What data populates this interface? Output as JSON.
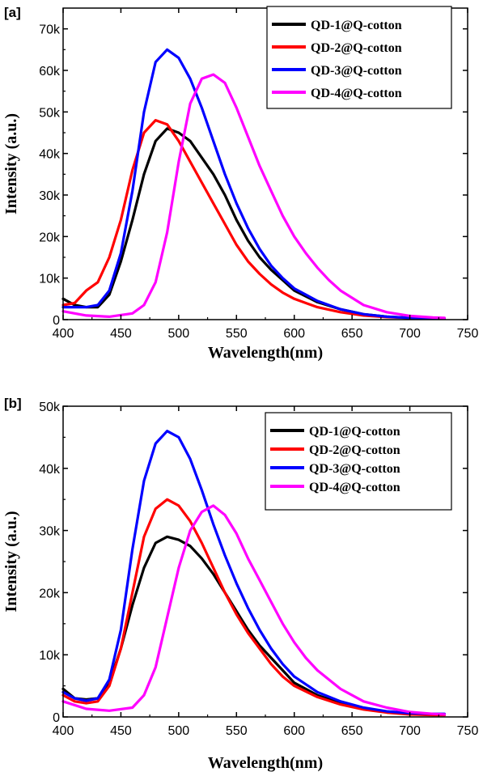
{
  "chart_data": [
    {
      "type": "line",
      "panel_label": "[a]",
      "xlabel": "Wavelength(nm)",
      "ylabel": "Intensity (a.u.)",
      "xlim": [
        400,
        750
      ],
      "ylim": [
        0,
        75000
      ],
      "xticks": [
        400,
        450,
        500,
        550,
        600,
        650,
        700,
        750
      ],
      "xtick_labels": [
        "400",
        "450",
        "500",
        "550",
        "600",
        "650",
        "700",
        "750"
      ],
      "yticks": [
        0,
        10000,
        20000,
        30000,
        40000,
        50000,
        60000,
        70000
      ],
      "ytick_labels": [
        "0",
        "10k",
        "20k",
        "30k",
        "40k",
        "50k",
        "60k",
        "70k"
      ],
      "legend_position": "top-right",
      "grid": false,
      "series": [
        {
          "name": "QD-1@Q-cotton",
          "color": "#000000",
          "x": [
            400,
            410,
            420,
            430,
            440,
            450,
            460,
            470,
            480,
            490,
            500,
            510,
            520,
            530,
            540,
            550,
            560,
            570,
            580,
            590,
            600,
            620,
            640,
            660,
            680,
            700,
            720,
            730
          ],
          "y": [
            5000,
            3500,
            3000,
            3000,
            6000,
            14000,
            24000,
            35000,
            43000,
            46000,
            45000,
            43000,
            39000,
            35000,
            30000,
            24000,
            19000,
            15000,
            12000,
            9500,
            7000,
            4200,
            2500,
            1300,
            700,
            400,
            300,
            300
          ]
        },
        {
          "name": "QD-2@Q-cotton",
          "color": "#ff0000",
          "x": [
            400,
            410,
            420,
            430,
            440,
            450,
            460,
            470,
            480,
            490,
            500,
            510,
            520,
            530,
            540,
            550,
            560,
            570,
            580,
            590,
            600,
            620,
            640,
            660,
            680,
            700,
            720,
            730
          ],
          "y": [
            3500,
            4000,
            7000,
            9000,
            15000,
            24000,
            36000,
            45000,
            48000,
            47000,
            43000,
            38000,
            33000,
            28000,
            23000,
            18000,
            14000,
            11000,
            8500,
            6500,
            5000,
            3000,
            1800,
            1000,
            600,
            400,
            300,
            300
          ]
        },
        {
          "name": "QD-3@Q-cotton",
          "color": "#0000ff",
          "x": [
            400,
            410,
            420,
            430,
            440,
            450,
            460,
            470,
            480,
            490,
            500,
            510,
            520,
            530,
            540,
            550,
            560,
            570,
            580,
            590,
            600,
            620,
            640,
            660,
            680,
            700,
            720,
            730
          ],
          "y": [
            3000,
            3000,
            3000,
            3500,
            7000,
            16000,
            31000,
            50000,
            62000,
            65000,
            63000,
            58000,
            51000,
            43000,
            35000,
            28000,
            22000,
            17000,
            13000,
            10000,
            7500,
            4500,
            2500,
            1300,
            700,
            400,
            300,
            300
          ]
        },
        {
          "name": "QD-4@Q-cotton",
          "color": "#ff00ff",
          "x": [
            400,
            420,
            440,
            460,
            470,
            480,
            490,
            500,
            510,
            520,
            530,
            540,
            550,
            560,
            570,
            580,
            590,
            600,
            610,
            620,
            630,
            640,
            660,
            680,
            700,
            720,
            730
          ],
          "y": [
            2000,
            1000,
            700,
            1500,
            3500,
            9000,
            21000,
            38000,
            52000,
            58000,
            59000,
            57000,
            51000,
            44000,
            37000,
            31000,
            25000,
            20000,
            16000,
            12500,
            9500,
            7000,
            3500,
            1800,
            900,
            500,
            400
          ]
        }
      ]
    },
    {
      "type": "line",
      "panel_label": "[b]",
      "xlabel": "Wavelength(nm)",
      "ylabel": "Intensity (a.u.)",
      "xlim": [
        400,
        750
      ],
      "ylim": [
        0,
        50000
      ],
      "xticks": [
        400,
        450,
        500,
        550,
        600,
        650,
        700,
        750
      ],
      "xtick_labels": [
        "400",
        "450",
        "500",
        "550",
        "600",
        "650",
        "700",
        "750"
      ],
      "yticks": [
        0,
        10000,
        20000,
        30000,
        40000,
        50000
      ],
      "ytick_labels": [
        "0",
        "10k",
        "20k",
        "30k",
        "40k",
        "50k"
      ],
      "legend_position": "top-right",
      "grid": false,
      "series": [
        {
          "name": "QD-1@Q-cotton",
          "color": "#000000",
          "x": [
            400,
            410,
            420,
            430,
            440,
            450,
            460,
            470,
            480,
            490,
            500,
            510,
            520,
            530,
            540,
            550,
            560,
            570,
            580,
            590,
            600,
            620,
            640,
            660,
            680,
            700,
            720,
            730
          ],
          "y": [
            4500,
            3000,
            2800,
            3000,
            5500,
            11000,
            18000,
            24000,
            28000,
            29000,
            28500,
            27500,
            25500,
            23000,
            20000,
            17000,
            14000,
            11500,
            9500,
            7500,
            5500,
            3500,
            2200,
            1300,
            800,
            500,
            400,
            400
          ]
        },
        {
          "name": "QD-2@Q-cotton",
          "color": "#ff0000",
          "x": [
            400,
            410,
            420,
            430,
            440,
            450,
            460,
            470,
            480,
            490,
            500,
            510,
            520,
            530,
            540,
            550,
            560,
            570,
            580,
            590,
            600,
            620,
            640,
            660,
            680,
            700,
            720,
            730
          ],
          "y": [
            3500,
            2500,
            2200,
            2500,
            5000,
            11000,
            20000,
            29000,
            33500,
            35000,
            34000,
            31500,
            28000,
            24000,
            20000,
            16500,
            13500,
            11000,
            8500,
            6500,
            5000,
            3200,
            2000,
            1200,
            700,
            400,
            300,
            300
          ]
        },
        {
          "name": "QD-3@Q-cotton",
          "color": "#0000ff",
          "x": [
            400,
            410,
            420,
            430,
            440,
            450,
            460,
            470,
            480,
            490,
            500,
            510,
            520,
            530,
            540,
            550,
            560,
            570,
            580,
            590,
            600,
            620,
            640,
            660,
            680,
            700,
            720,
            730
          ],
          "y": [
            4000,
            3000,
            2600,
            3000,
            6000,
            14000,
            27000,
            38000,
            44000,
            46000,
            45000,
            41500,
            36500,
            31000,
            26000,
            21500,
            17500,
            14000,
            11000,
            8500,
            6500,
            4000,
            2500,
            1500,
            900,
            600,
            500,
            500
          ]
        },
        {
          "name": "QD-4@Q-cotton",
          "color": "#ff00ff",
          "x": [
            400,
            420,
            440,
            460,
            470,
            480,
            490,
            500,
            510,
            520,
            530,
            540,
            550,
            560,
            570,
            580,
            590,
            600,
            610,
            620,
            640,
            660,
            680,
            700,
            720,
            730
          ],
          "y": [
            2500,
            1300,
            1000,
            1500,
            3500,
            8000,
            16000,
            24000,
            30000,
            33000,
            34000,
            32500,
            29500,
            25500,
            22000,
            18500,
            15000,
            12000,
            9500,
            7500,
            4500,
            2500,
            1500,
            800,
            500,
            400
          ]
        }
      ]
    }
  ]
}
